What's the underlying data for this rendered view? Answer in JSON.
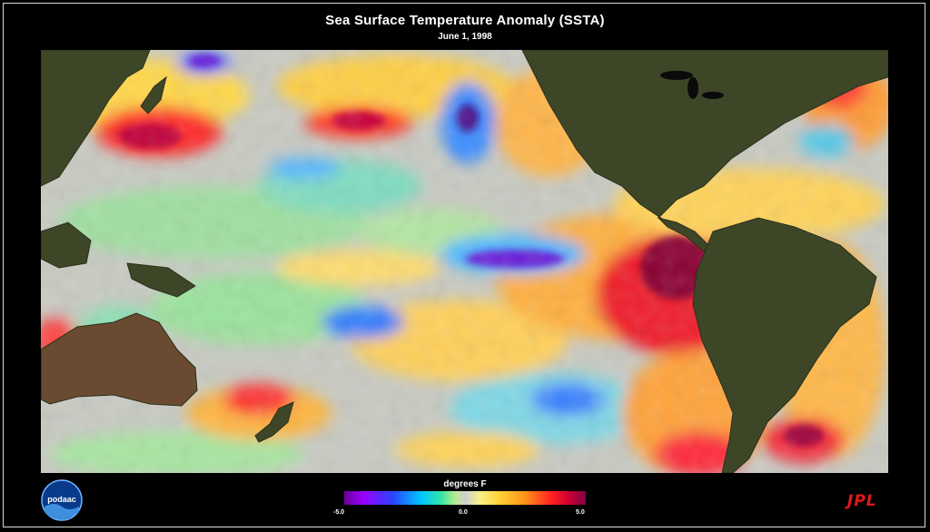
{
  "title": "Sea Surface Temperature Anomaly (SSTA)",
  "subtitle": "June 1, 1998",
  "legend": {
    "label": "degrees F",
    "min_label": "-5.0",
    "mid_label": "0.0",
    "max_label": "5.0",
    "colors": [
      "#6a0096",
      "#2a43ff",
      "#00c8ff",
      "#b9eb8e",
      "#cfcfcf",
      "#ffd23a",
      "#ff9a1a",
      "#ff2020",
      "#820044"
    ]
  },
  "logos": {
    "left": "podaac",
    "right": "JPL"
  },
  "colors": {
    "background": "#000000",
    "land": "#3d4527",
    "neutral_ocean": "#c9c9c4",
    "accent_red": "#e01818"
  }
}
